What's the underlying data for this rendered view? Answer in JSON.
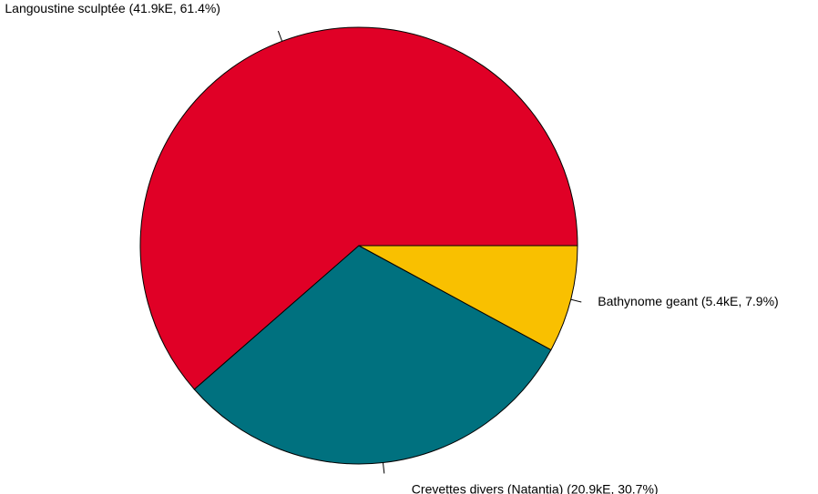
{
  "chart_data": {
    "type": "pie",
    "title": "",
    "series": [
      {
        "values": [
          41.9,
          20.9,
          5.4
        ],
        "percentages": [
          61.4,
          30.7,
          7.9
        ]
      }
    ],
    "slices": [
      {
        "name": "Langoustine sculptée",
        "value": 41.9,
        "percent": 61.4,
        "label": "Langoustine sculptée (41.9kE, 61.4%)",
        "color": "#E00026"
      },
      {
        "name": "Crevettes divers (Natantia)",
        "value": 20.9,
        "percent": 30.7,
        "label": "Crevettes divers (Natantia) (20.9kE, 30.7%)",
        "color": "#00717F"
      },
      {
        "name": "Bathynome geant",
        "value": 5.4,
        "percent": 7.9,
        "label": "Bathynome geant (5.4kE, 7.9%)",
        "color": "#F9C000"
      }
    ],
    "start_angle_deg": 0,
    "direction": "counterclockwise",
    "legend": "none",
    "labels": "outside-with-leader-lines"
  }
}
